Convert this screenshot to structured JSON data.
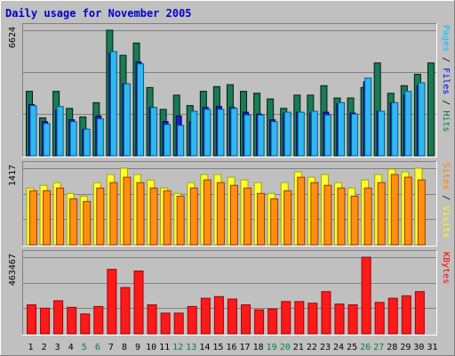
{
  "chart_data": {
    "type": "bar",
    "title": "Daily usage for November 2005",
    "days": [
      "1",
      "2",
      "3",
      "4",
      "5",
      "6",
      "7",
      "8",
      "9",
      "10",
      "11",
      "12",
      "13",
      "14",
      "15",
      "16",
      "17",
      "18",
      "19",
      "20",
      "21",
      "22",
      "23",
      "24",
      "25",
      "26",
      "27",
      "28",
      "29",
      "30",
      "31"
    ],
    "weekend_days": [
      "5",
      "6",
      "12",
      "13",
      "19",
      "20",
      "26",
      "27"
    ],
    "panels": [
      {
        "name": "hits-files-pages",
        "max_label": "6624",
        "ylim": [
          0,
          6624
        ],
        "legend": [
          {
            "text": "Pages",
            "color": "#00c0ff"
          },
          {
            "text": " / ",
            "color": "#000000"
          },
          {
            "text": "Files",
            "color": "#0000ff"
          },
          {
            "text": " / ",
            "color": "#000000"
          },
          {
            "text": "Hits",
            "color": "#008040"
          }
        ],
        "series": [
          {
            "name": "Hits",
            "color": "#1a7a5a",
            "values": [
              3400,
              2000,
              3400,
              2500,
              2050,
              2800,
              6624,
              5300,
              5950,
              3600,
              2450,
              3200,
              2650,
              3400,
              3650,
              3750,
              3400,
              3300,
              3000,
              2500,
              3200,
              3200,
              3700,
              3050,
              3050,
              3600,
              4900,
              3300,
              3700,
              4300,
              4900
            ]
          },
          {
            "name": "Files",
            "color": "#1c20c0",
            "values": [
              2700,
              1800,
              2400,
              1900,
              1400,
              2100,
              5400,
              3800,
              4950,
              2550,
              1800,
              2100,
              1800,
              2550,
              2600,
              2550,
              2300,
              2200,
              1900,
              2250,
              2300,
              2250,
              2300,
              2750,
              2250,
              3900,
              2350,
              2800,
              3200,
              3700,
              0
            ]
          },
          {
            "name": "Pages",
            "color": "#30b8f0",
            "values": [
              2650,
              1700,
              2600,
              1800,
              1400,
              1950,
              5500,
              3800,
              4850,
              2550,
              1650,
              1600,
              2350,
              2450,
              2450,
              2500,
              2150,
              2150,
              1800,
              2300,
              2300,
              2350,
              2150,
              2800,
              2200,
              4100,
              2350,
              2800,
              3400,
              3850,
              0
            ]
          }
        ]
      },
      {
        "name": "visits-sites",
        "max_label": "1417",
        "ylim": [
          0,
          1417
        ],
        "legend": [
          {
            "text": "Sites",
            "color": "#ff8000"
          },
          {
            "text": " / ",
            "color": "#000000"
          },
          {
            "text": "Visits",
            "color": "#ffff00"
          }
        ],
        "series": [
          {
            "name": "Visits",
            "color": "#ffff33",
            "values": [
              1050,
              1100,
              1150,
              950,
              900,
              1150,
              1300,
              1417,
              1300,
              1200,
              1050,
              950,
              1150,
              1300,
              1300,
              1250,
              1200,
              1150,
              950,
              1150,
              1350,
              1250,
              1300,
              1150,
              1050,
              1200,
              1300,
              1400,
              1350,
              1417,
              0
            ]
          },
          {
            "name": "Sites",
            "color": "#ff9010",
            "values": [
              1000,
              1000,
              1050,
              850,
              800,
              1050,
              1150,
              1250,
              1150,
              1050,
              1000,
              900,
              1050,
              1200,
              1150,
              1100,
              1050,
              950,
              850,
              1000,
              1250,
              1150,
              1100,
              1050,
              900,
              1050,
              1150,
              1300,
              1250,
              1200,
              0
            ]
          }
        ]
      },
      {
        "name": "kbytes",
        "max_label": "463467",
        "ylim": [
          0,
          463467
        ],
        "legend": [
          {
            "text": "KBytes",
            "color": "#ff0000"
          }
        ],
        "series": [
          {
            "name": "KBytes",
            "color": "#ff1a1a",
            "values": [
              175000,
              155000,
              200000,
              160000,
              120000,
              165000,
              390000,
              280000,
              380000,
              175000,
              125000,
              125000,
              165000,
              215000,
              225000,
              210000,
              175000,
              145000,
              150000,
              195000,
              195000,
              185000,
              255000,
              180000,
              175000,
              463467,
              190000,
              215000,
              230000,
              255000,
              0
            ]
          }
        ]
      }
    ]
  }
}
